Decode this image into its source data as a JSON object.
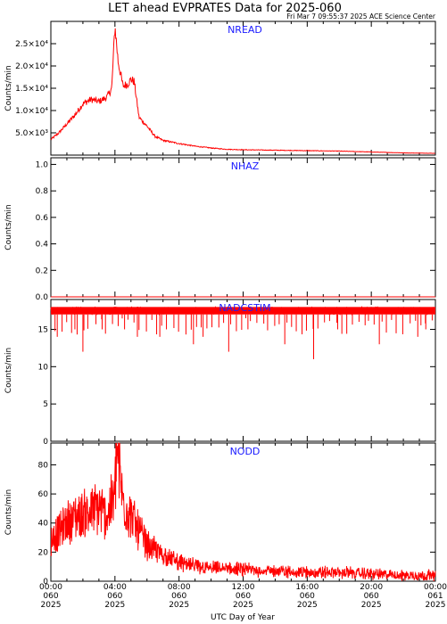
{
  "header": {
    "title": "LET ahead EVPRATES Data for 2025-060",
    "timestamp": "Fri Mar  7 09:55:37 2025 ACE Science Center"
  },
  "x_axis": {
    "label": "UTC Day of Year",
    "ticks": [
      {
        "hour": 0,
        "time": "00:00",
        "day": "060",
        "year": "2025"
      },
      {
        "hour": 4,
        "time": "04:00",
        "day": "060",
        "year": "2025"
      },
      {
        "hour": 8,
        "time": "08:00",
        "day": "060",
        "year": "2025"
      },
      {
        "hour": 12,
        "time": "12:00",
        "day": "060",
        "year": "2025"
      },
      {
        "hour": 16,
        "time": "16:00",
        "day": "060",
        "year": "2025"
      },
      {
        "hour": 20,
        "time": "20:00",
        "day": "060",
        "year": "2025"
      },
      {
        "hour": 24,
        "time": "00:00",
        "day": "061",
        "year": "2025"
      }
    ],
    "range_hours": [
      0,
      24
    ]
  },
  "colors": {
    "trace": "#ff0000",
    "panel_label": "#1a1aff"
  },
  "chart_data": [
    {
      "type": "line",
      "name": "NREAD",
      "ylabel": "Counts/min",
      "ylim": [
        0,
        30000
      ],
      "yticks": [
        {
          "v": 5000,
          "label": "5.0×10³"
        },
        {
          "v": 10000,
          "label": "1.0×10⁴"
        },
        {
          "v": 15000,
          "label": "1.5×10⁴"
        },
        {
          "v": 20000,
          "label": "2.0×10⁴"
        },
        {
          "v": 25000,
          "label": "2.5×10⁴"
        }
      ],
      "x_hours": [
        0,
        0.5,
        1,
        1.5,
        2,
        2.5,
        3,
        3.5,
        3.8,
        4.0,
        4.2,
        4.5,
        4.8,
        5.0,
        5.2,
        5.5,
        6,
        6.5,
        7,
        8,
        9,
        10,
        11,
        12,
        14,
        16,
        18,
        20,
        22,
        24
      ],
      "values": [
        3500,
        5000,
        7000,
        9000,
        11500,
        12500,
        12000,
        13000,
        15000,
        29000,
        21000,
        15500,
        16000,
        17000,
        16500,
        8500,
        6500,
        4200,
        3300,
        2600,
        2000,
        1600,
        1300,
        1200,
        1100,
        1000,
        900,
        700,
        500,
        400
      ]
    },
    {
      "type": "line",
      "name": "NHAZ",
      "ylabel": "Counts/min",
      "ylim": [
        0,
        1.05
      ],
      "yticks": [
        {
          "v": 0,
          "label": "0.0"
        },
        {
          "v": 0.2,
          "label": "0.2"
        },
        {
          "v": 0.4,
          "label": "0.4"
        },
        {
          "v": 0.6,
          "label": "0.6"
        },
        {
          "v": 0.8,
          "label": "0.8"
        },
        {
          "v": 1.0,
          "label": "1.0"
        }
      ],
      "x_hours": [
        0,
        24
      ],
      "values": [
        0,
        0
      ]
    },
    {
      "type": "line",
      "name": "NADCSTIM",
      "ylabel": "Counts/min",
      "ylim": [
        0,
        19
      ],
      "yticks": [
        {
          "v": 0,
          "label": "0"
        },
        {
          "v": 5,
          "label": "5"
        },
        {
          "v": 10,
          "label": "10"
        },
        {
          "v": 15,
          "label": "15"
        }
      ],
      "baseline_range": [
        17,
        18
      ],
      "dips": [
        {
          "hour": 0.4,
          "value": 14
        },
        {
          "hour": 1.5,
          "value": 15
        },
        {
          "hour": 2.0,
          "value": 12
        },
        {
          "hour": 3.2,
          "value": 15
        },
        {
          "hour": 4.6,
          "value": 15
        },
        {
          "hour": 5.4,
          "value": 14
        },
        {
          "hour": 6.8,
          "value": 14
        },
        {
          "hour": 8.9,
          "value": 13
        },
        {
          "hour": 9.5,
          "value": 14
        },
        {
          "hour": 11.1,
          "value": 12
        },
        {
          "hour": 12.3,
          "value": 15
        },
        {
          "hour": 14.6,
          "value": 13
        },
        {
          "hour": 16.4,
          "value": 11
        },
        {
          "hour": 17.9,
          "value": 15
        },
        {
          "hour": 20.5,
          "value": 13
        },
        {
          "hour": 22.9,
          "value": 14
        },
        {
          "hour": 23.4,
          "value": 15
        }
      ]
    },
    {
      "type": "line",
      "name": "NODD",
      "ylabel": "Counts/min",
      "ylim": [
        0,
        95
      ],
      "yticks": [
        {
          "v": 0,
          "label": "0"
        },
        {
          "v": 20,
          "label": "20"
        },
        {
          "v": 40,
          "label": "40"
        },
        {
          "v": 60,
          "label": "60"
        },
        {
          "v": 80,
          "label": "80"
        }
      ],
      "x_hours": [
        0,
        0.5,
        1,
        1.5,
        2,
        2.5,
        3,
        3.5,
        4.0,
        4.1,
        4.5,
        5,
        5.5,
        6,
        7,
        8,
        9,
        10,
        12,
        14,
        16,
        18,
        20,
        22,
        24
      ],
      "values": [
        28,
        34,
        40,
        44,
        46,
        48,
        50,
        45,
        60,
        92,
        55,
        45,
        35,
        25,
        18,
        13,
        10,
        9,
        8,
        7,
        6,
        6,
        5,
        4,
        4
      ]
    }
  ]
}
